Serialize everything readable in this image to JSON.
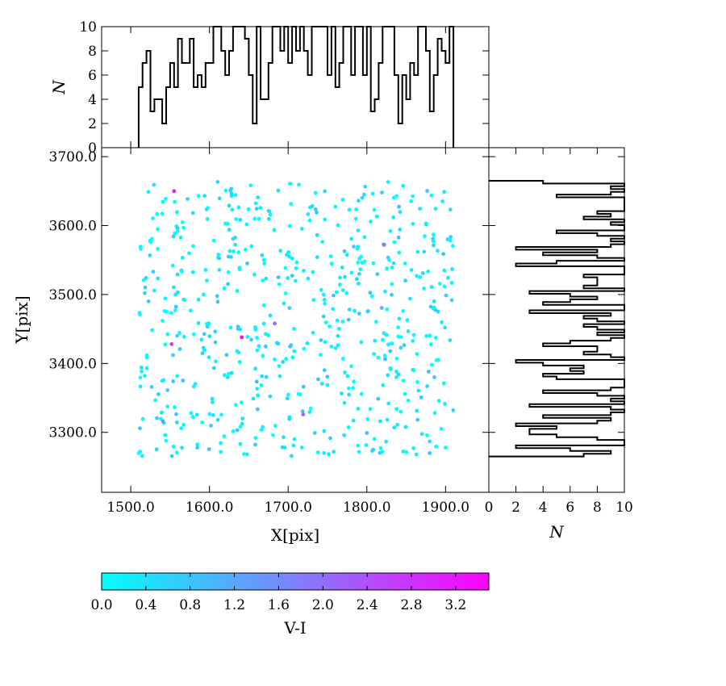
{
  "chart_data": [
    {
      "type": "scatter",
      "panel": "main",
      "xlabel": "X[pix]",
      "ylabel": "Y[pix]",
      "xlim": [
        1463,
        1955
      ],
      "ylim": [
        3213,
        3713
      ],
      "xticks": [
        "1500.0",
        "1600.0",
        "1700.0",
        "1800.0",
        "1900.0"
      ],
      "yticks": [
        "3300.0",
        "3400.0",
        "3500.0",
        "3600.0",
        "3700.0"
      ],
      "points_note": "about 600 random stars, uniform in x 1510–1910 and y 3265–3665, most with V-I between 0.0 and 0.6",
      "points_highlighted": [
        {
          "x": 1555,
          "y": 3650,
          "c": 3.1
        },
        {
          "x": 1552,
          "y": 3428,
          "c": 2.5
        },
        {
          "x": 1641,
          "y": 3438,
          "c": 3.4
        },
        {
          "x": 1683,
          "y": 3458,
          "c": 2.0
        },
        {
          "x": 1719,
          "y": 3326,
          "c": 2.0
        },
        {
          "x": 1822,
          "y": 3572,
          "c": 1.8
        },
        {
          "x": 1541,
          "y": 3316,
          "c": 1.4
        }
      ],
      "color": {
        "label": "V-I",
        "range": [
          0.0,
          3.5
        ],
        "ticks": [
          "0.0",
          "0.4",
          "0.8",
          "1.2",
          "1.6",
          "2.0",
          "2.4",
          "2.8",
          "3.2"
        ],
        "colormap": "cool",
        "low": "#00ffff",
        "high": "#ff00ff"
      }
    },
    {
      "type": "histogram",
      "panel": "top",
      "orientation": "vertical",
      "ylabel": "N",
      "ylim": [
        0,
        10
      ],
      "yticks": [
        "0",
        "2",
        "4",
        "6",
        "8",
        "10"
      ],
      "bin_edges_x": [
        1510,
        1910
      ],
      "counts": [
        5,
        7,
        8,
        3,
        4,
        4,
        2,
        5,
        7,
        5,
        9,
        7,
        7,
        9,
        5,
        6,
        5,
        7,
        7,
        10,
        10,
        8,
        6,
        8,
        10,
        10,
        10,
        9,
        6,
        2,
        10,
        4,
        4,
        7,
        10,
        10,
        8,
        10,
        7,
        10,
        8,
        10,
        8,
        6,
        10,
        10,
        10,
        10,
        6,
        10,
        5,
        7,
        10,
        10,
        6,
        10,
        10,
        6,
        10,
        3,
        4,
        7,
        10,
        10,
        10,
        6,
        2,
        6,
        4,
        7,
        6,
        10,
        10,
        8,
        3,
        6,
        9,
        8,
        7,
        10
      ],
      "counts_note": "counts above 10 are clipped by the axis"
    },
    {
      "type": "histogram",
      "panel": "right",
      "orientation": "horizontal",
      "xlabel": "N",
      "xlim": [
        0,
        10
      ],
      "xticks": [
        "0",
        "2",
        "4",
        "6",
        "8",
        "10"
      ],
      "bin_edges_y": [
        3265,
        3665
      ],
      "counts": [
        7,
        9,
        6,
        2,
        10,
        10,
        8,
        5,
        3,
        3,
        5,
        2,
        8,
        9,
        4,
        9,
        10,
        9,
        3,
        10,
        9,
        10,
        8,
        4,
        9,
        10,
        10,
        10,
        5,
        4,
        7,
        6,
        7,
        4,
        2,
        10,
        9,
        7,
        8,
        8,
        4,
        6,
        9,
        10,
        8,
        10,
        8,
        7,
        10,
        8,
        7,
        9,
        3,
        10,
        10,
        4,
        6,
        8,
        6,
        3,
        10,
        7,
        8,
        8,
        8,
        7,
        10,
        10,
        10,
        2,
        5,
        10,
        8,
        4,
        8,
        2,
        9,
        10,
        9,
        10,
        8,
        5,
        10,
        10,
        9,
        10,
        7,
        9,
        8,
        10,
        10,
        10,
        10,
        10,
        5,
        9,
        10,
        9,
        10,
        4
      ]
    }
  ]
}
